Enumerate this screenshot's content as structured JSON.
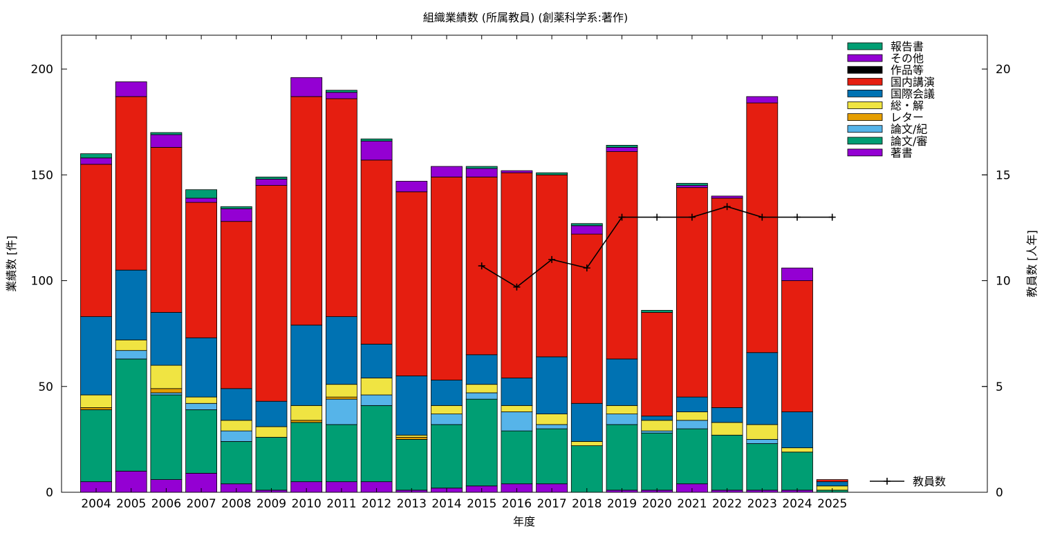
{
  "chart_data": {
    "type": "bar",
    "stacked": true,
    "title": "組織業績数 (所属教員) (創薬科学系:著作)",
    "xlabel": "年度",
    "ylabel": "業績数 [件]",
    "y2label": "教員数 [人年]",
    "ylim": [
      0,
      216
    ],
    "y2lim": [
      0,
      21.6
    ],
    "yticks": [
      0,
      50,
      100,
      150,
      200
    ],
    "y2ticks": [
      0,
      5,
      10,
      15,
      20
    ],
    "grid": false,
    "legend_position": "top-right",
    "categories": [
      "2004",
      "2005",
      "2006",
      "2007",
      "2008",
      "2009",
      "2010",
      "2011",
      "2012",
      "2013",
      "2014",
      "2015",
      "2016",
      "2017",
      "2018",
      "2019",
      "2020",
      "2021",
      "2022",
      "2023",
      "2024",
      "2025"
    ],
    "series": [
      {
        "name": "著書",
        "color": "#9400d3",
        "values": [
          5,
          10,
          6,
          9,
          4,
          1,
          5,
          5,
          5,
          1,
          2,
          3,
          4,
          4,
          0,
          1,
          1,
          4,
          1,
          1,
          1,
          0
        ]
      },
      {
        "name": "論文/審",
        "color": "#009e73",
        "values": [
          34,
          53,
          40,
          30,
          20,
          25,
          28,
          27,
          36,
          24,
          30,
          41,
          25,
          26,
          22,
          31,
          27,
          26,
          26,
          22,
          18,
          1
        ]
      },
      {
        "name": "論文/紀",
        "color": "#56b4e9",
        "values": [
          0,
          4,
          1,
          3,
          5,
          0,
          0,
          12,
          5,
          0,
          5,
          3,
          9,
          2,
          0,
          5,
          1,
          4,
          0,
          2,
          0,
          0
        ]
      },
      {
        "name": "レター",
        "color": "#e69f00",
        "values": [
          1,
          0,
          2,
          0,
          0,
          0,
          1,
          1,
          0,
          1,
          0,
          0,
          0,
          0,
          0,
          0,
          0,
          0,
          0,
          0,
          0,
          0
        ]
      },
      {
        "name": "総・解",
        "color": "#f0e442",
        "values": [
          6,
          5,
          11,
          3,
          5,
          5,
          7,
          6,
          8,
          1,
          4,
          4,
          3,
          5,
          2,
          4,
          5,
          4,
          6,
          7,
          2,
          2
        ]
      },
      {
        "name": "国際会議",
        "color": "#0072b2",
        "values": [
          37,
          33,
          25,
          28,
          15,
          12,
          38,
          32,
          16,
          28,
          12,
          14,
          13,
          27,
          18,
          22,
          2,
          7,
          7,
          34,
          17,
          2
        ]
      },
      {
        "name": "国内講演",
        "color": "#e51e10",
        "values": [
          72,
          82,
          78,
          64,
          79,
          102,
          108,
          103,
          87,
          87,
          96,
          84,
          97,
          86,
          80,
          98,
          49,
          99,
          99,
          118,
          62,
          1
        ]
      },
      {
        "name": "作品等",
        "color": "#000000",
        "values": [
          0,
          0,
          0,
          0,
          0,
          0,
          0,
          0,
          0,
          0,
          0,
          0,
          0,
          0,
          0,
          0,
          0,
          0,
          0,
          0,
          0,
          0
        ]
      },
      {
        "name": "その他",
        "color": "#9400d3",
        "values": [
          3,
          7,
          6,
          2,
          6,
          3,
          9,
          3,
          9,
          5,
          5,
          4,
          1,
          0,
          4,
          2,
          0,
          1,
          1,
          3,
          6,
          0
        ]
      },
      {
        "name": "報告書",
        "color": "#009e73",
        "values": [
          2,
          0,
          1,
          4,
          1,
          1,
          0,
          1,
          1,
          0,
          0,
          1,
          0,
          1,
          1,
          1,
          1,
          1,
          0,
          0,
          0,
          0
        ]
      }
    ],
    "line_series": {
      "name": "教員数",
      "color": "#000000",
      "axis": "y2",
      "x": [
        "2015",
        "2016",
        "2017",
        "2018",
        "2019",
        "2020",
        "2021",
        "2022",
        "2023",
        "2024",
        "2025"
      ],
      "values": [
        10.7,
        9.7,
        11.0,
        10.6,
        13.0,
        13.0,
        13.0,
        13.5,
        13.0,
        13.0,
        13.0
      ]
    }
  }
}
